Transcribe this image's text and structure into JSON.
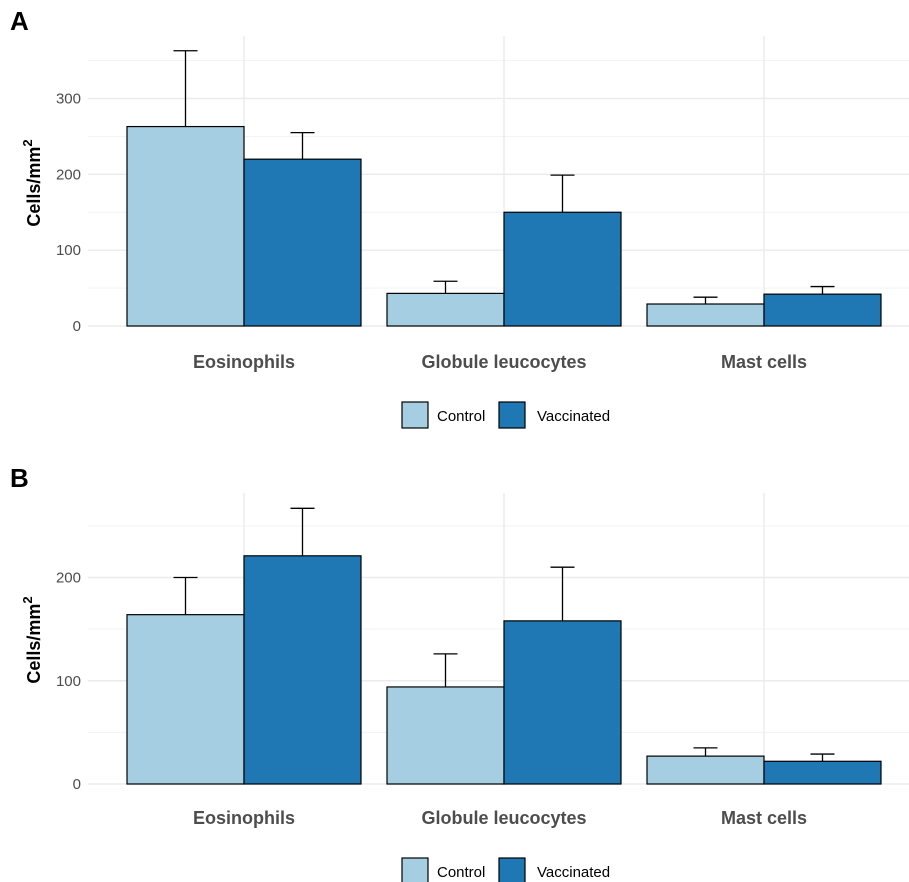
{
  "chart_data": [
    {
      "panel_label": "A",
      "type": "bar",
      "categories": [
        "Eosinophils",
        "Globule leucocytes",
        "Mast cells"
      ],
      "series": [
        {
          "name": "Control",
          "color": "#a6cee3",
          "values": [
            263,
            43,
            29
          ],
          "errors": [
            100,
            16,
            9
          ]
        },
        {
          "name": "Vaccinated",
          "color": "#1f78b4",
          "values": [
            220,
            150,
            42
          ],
          "errors": [
            35,
            49,
            10
          ]
        }
      ],
      "ylabel": "Cells/mm",
      "ylabel_superscript": "2",
      "xlabel": "",
      "ylim": [
        0,
        375
      ],
      "yticks": [
        0,
        100,
        200,
        300
      ],
      "grid": true,
      "legend": "bottom"
    },
    {
      "panel_label": "B",
      "type": "bar",
      "categories": [
        "Eosinophils",
        "Globule leucocytes",
        "Mast cells"
      ],
      "series": [
        {
          "name": "Control",
          "color": "#a6cee3",
          "values": [
            164,
            94,
            27
          ],
          "errors": [
            36,
            32,
            8
          ]
        },
        {
          "name": "Vaccinated",
          "color": "#1f78b4",
          "values": [
            221,
            158,
            22
          ],
          "errors": [
            46,
            52,
            7
          ]
        }
      ],
      "ylabel": "Cells/mm",
      "ylabel_superscript": "2",
      "xlabel": "",
      "ylim": [
        0,
        280
      ],
      "yticks": [
        0,
        100,
        200
      ],
      "grid": true,
      "legend": "bottom"
    }
  ]
}
